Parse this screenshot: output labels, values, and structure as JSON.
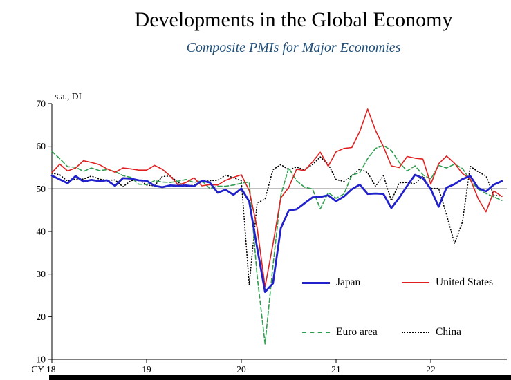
{
  "chart_data": {
    "type": "line",
    "title": "Developments in the Global Economy",
    "subtitle": "Composite PMIs for Major Economies",
    "unit_label": "s.a., DI",
    "frequency": "monthly",
    "x_start": "2018-01",
    "ylim": [
      10,
      70
    ],
    "yticks": [
      10,
      20,
      30,
      40,
      50,
      60,
      70
    ],
    "reference_line": 50,
    "grid": false,
    "legend_position": "inside-lower-right",
    "x_ticks": [
      {
        "label": "CY 18",
        "month": 0
      },
      {
        "label": "19",
        "month": 12
      },
      {
        "label": "20",
        "month": 24
      },
      {
        "label": "21",
        "month": 36
      },
      {
        "label": "22",
        "month": 48
      }
    ],
    "series": [
      {
        "name": "Japan",
        "color": "#2222cc",
        "style": "solid-thick",
        "values": [
          53.1,
          52.2,
          51.3,
          53.0,
          51.7,
          52.1,
          51.8,
          52.0,
          50.7,
          52.5,
          52.4,
          52.0,
          51.9,
          50.7,
          50.4,
          50.8,
          50.7,
          50.8,
          50.6,
          51.9,
          51.5,
          49.1,
          49.8,
          48.6,
          50.1,
          47.0,
          36.2,
          25.8,
          27.8,
          40.8,
          44.9,
          45.2,
          46.6,
          48.0,
          48.1,
          48.5,
          47.1,
          48.2,
          49.9,
          51.0,
          48.8,
          48.9,
          48.8,
          45.5,
          47.9,
          50.7,
          53.3,
          52.5,
          49.9,
          45.8,
          50.3,
          51.1,
          52.3,
          53.0,
          50.2,
          49.4,
          51.0,
          51.8
        ]
      },
      {
        "name": "United States",
        "color": "#e02020",
        "style": "solid",
        "values": [
          53.8,
          55.8,
          54.2,
          54.9,
          56.6,
          56.2,
          55.7,
          54.7,
          53.9,
          54.9,
          54.7,
          54.4,
          54.4,
          55.5,
          54.6,
          53.0,
          50.9,
          51.5,
          52.6,
          50.7,
          51.0,
          50.9,
          52.0,
          52.7,
          53.3,
          49.6,
          40.9,
          27.0,
          37.0,
          47.9,
          50.3,
          54.6,
          54.3,
          56.3,
          58.6,
          55.3,
          58.7,
          59.5,
          59.7,
          63.5,
          68.7,
          63.7,
          59.9,
          55.4,
          55.0,
          57.6,
          57.2,
          57.0,
          51.1,
          55.9,
          57.7,
          56.0,
          53.6,
          52.3,
          47.7,
          44.6,
          49.5,
          48.2
        ]
      },
      {
        "name": "Euro area",
        "color": "#2f9e4f",
        "style": "dashed",
        "values": [
          58.8,
          57.1,
          55.2,
          55.1,
          54.1,
          54.9,
          54.3,
          54.5,
          54.1,
          53.1,
          52.7,
          51.1,
          51.0,
          51.9,
          51.6,
          51.5,
          51.8,
          52.2,
          51.5,
          51.9,
          50.1,
          50.6,
          50.6,
          50.9,
          51.3,
          51.6,
          29.7,
          13.6,
          31.9,
          48.5,
          54.9,
          51.9,
          50.4,
          50.0,
          45.3,
          49.1,
          47.8,
          48.8,
          53.2,
          53.8,
          57.1,
          59.5,
          60.2,
          59.0,
          56.2,
          54.2,
          55.4,
          53.3,
          52.3,
          55.5,
          54.9,
          55.8,
          54.8,
          52.0,
          49.9,
          48.9,
          48.1,
          47.3
        ]
      },
      {
        "name": "China",
        "color": "#000000",
        "style": "dotted",
        "values": [
          53.7,
          53.3,
          51.8,
          52.3,
          52.3,
          53.0,
          52.3,
          52.0,
          52.1,
          50.5,
          51.9,
          52.2,
          50.9,
          50.7,
          52.9,
          53.0,
          51.5,
          50.6,
          50.9,
          51.6,
          51.9,
          52.0,
          53.2,
          52.6,
          51.9,
          27.5,
          46.7,
          47.6,
          54.5,
          55.7,
          54.5,
          55.1,
          54.5,
          55.7,
          57.5,
          55.8,
          52.2,
          51.7,
          53.1,
          54.7,
          53.8,
          50.6,
          53.1,
          47.2,
          51.4,
          51.5,
          51.2,
          53.0,
          50.1,
          50.1,
          43.9,
          37.2,
          42.2,
          55.3,
          54.0,
          53.0,
          48.5,
          48.3
        ]
      }
    ]
  }
}
